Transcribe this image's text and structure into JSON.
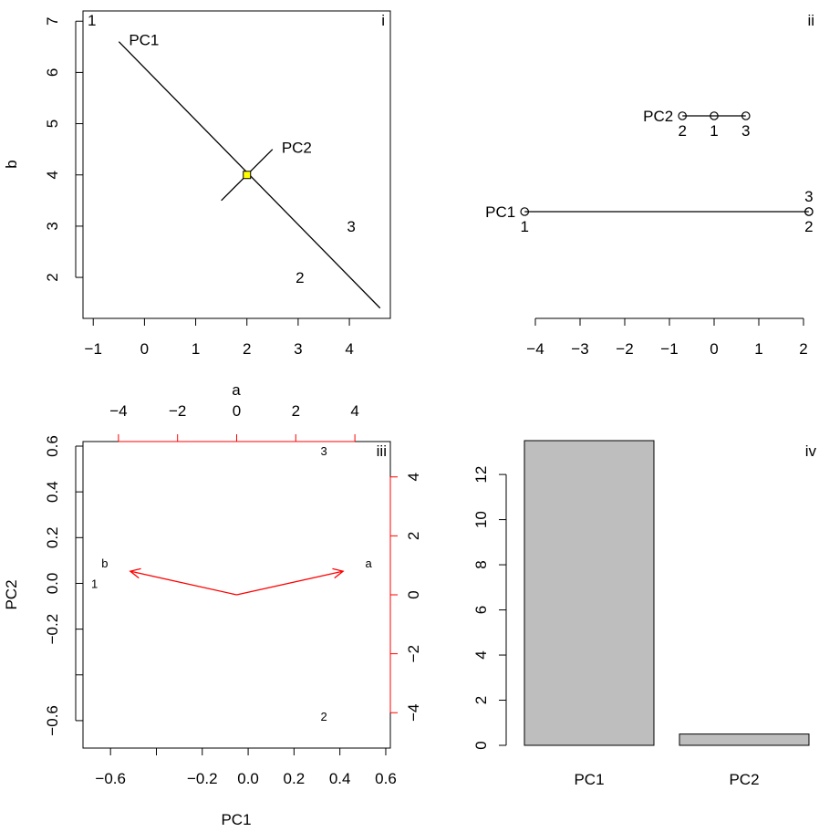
{
  "chart_data": [
    {
      "panel": "i",
      "type": "scatter",
      "xlabel": "a",
      "ylabel": "b",
      "corner_text": "1",
      "xticks": [
        -1,
        0,
        1,
        2,
        3,
        4
      ],
      "yticks": [
        2,
        3,
        4,
        5,
        6,
        7
      ],
      "xlim": [
        -1.2,
        4.8
      ],
      "ylim": [
        1.2,
        7.2
      ],
      "points": [
        {
          "label": "1",
          "x": -1,
          "y": 7
        },
        {
          "label": "2",
          "x": 3,
          "y": 2
        },
        {
          "label": "3",
          "x": 4,
          "y": 3
        }
      ],
      "center": {
        "x": 2,
        "y": 4
      },
      "axes_lines": [
        {
          "name": "PC1",
          "x1": -0.5,
          "y1": 6.6,
          "x2": 4.6,
          "y2": 1.4
        },
        {
          "name": "PC2",
          "x1": 1.5,
          "y1": 3.5,
          "x2": 2.5,
          "y2": 4.5
        }
      ]
    },
    {
      "panel": "ii",
      "type": "scatter",
      "xticks": [
        -4,
        -3,
        -2,
        -1,
        0,
        1,
        2
      ],
      "xlim": [
        -4.3,
        2.2
      ],
      "rows": [
        {
          "name": "PC2",
          "points": [
            {
              "label": "2",
              "x": -0.71
            },
            {
              "label": "1",
              "x": 0
            },
            {
              "label": "3",
              "x": 0.71
            }
          ]
        },
        {
          "name": "PC1",
          "points": [
            {
              "label": "1",
              "x": -4.24
            },
            {
              "label": "3",
              "x": 2.12
            },
            {
              "label": "2",
              "x": 2.12
            }
          ]
        }
      ]
    },
    {
      "panel": "iii",
      "type": "scatter",
      "xlabel": "PC1",
      "ylabel": "PC2",
      "xticks": [
        -0.6,
        -0.4,
        -0.2,
        0.0,
        0.2,
        0.4,
        0.6
      ],
      "xtick_labels": [
        "−0.6",
        "",
        "−0.2",
        "0.0",
        "0.2",
        "0.4",
        "0.6"
      ],
      "yticks": [
        -0.6,
        -0.4,
        -0.2,
        0.0,
        0.2,
        0.4,
        0.6
      ],
      "ytick_labels": [
        "−0.6",
        "",
        "−0.2",
        "0.0",
        "0.2",
        "0.4",
        "0.6"
      ],
      "xlim": [
        -0.72,
        0.62
      ],
      "ylim": [
        -0.72,
        0.62
      ],
      "top_ticks": [
        -4,
        -2,
        0,
        2,
        4
      ],
      "top_tick_labels": [
        "−4",
        "−2",
        "0",
        "2",
        "4"
      ],
      "right_ticks": [
        -4,
        -2,
        0,
        2,
        4
      ],
      "right_tick_labels": [
        "−4",
        "−2",
        "0",
        "2",
        "4"
      ],
      "sec_lim": [
        -5.2,
        5.2
      ],
      "top_axis_label": "a",
      "scores": [
        {
          "label": "1",
          "x": -0.67,
          "y": 0.0
        },
        {
          "label": "2",
          "x": 0.33,
          "y": -0.58
        },
        {
          "label": "3",
          "x": 0.33,
          "y": 0.58
        }
      ],
      "loadings": [
        {
          "label": "a",
          "x": 3.6,
          "y": 0.8
        },
        {
          "label": "b",
          "x": -3.6,
          "y": 0.8
        }
      ],
      "arrow_color": "#ff0000"
    },
    {
      "panel": "iv",
      "type": "bar",
      "categories": [
        "PC1",
        "PC2"
      ],
      "values": [
        13.5,
        0.5
      ],
      "yticks": [
        0,
        2,
        4,
        6,
        8,
        10,
        12
      ],
      "ylim": [
        0,
        13.5
      ],
      "bar_color": "#bebebe"
    }
  ],
  "panel_labels": [
    "i",
    "ii",
    "iii",
    "iv"
  ]
}
